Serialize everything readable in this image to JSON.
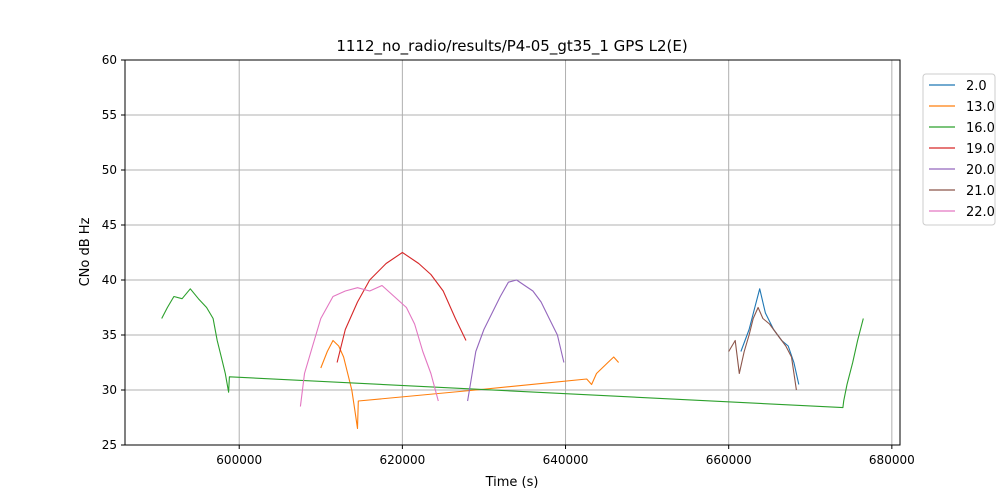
{
  "chart_data": {
    "type": "line",
    "title": "1112_no_radio/results/P4-05_gt35_1 GPS L2(E)",
    "xlabel": "Time (s)",
    "ylabel": "CNo dB Hz",
    "xlim": [
      586000,
      681000
    ],
    "ylim": [
      25,
      60
    ],
    "x_ticks": [
      600000,
      620000,
      640000,
      660000,
      680000
    ],
    "y_ticks": [
      25,
      30,
      35,
      40,
      45,
      50,
      55,
      60
    ],
    "grid": true,
    "legend_position": "right, outside plot",
    "series": [
      {
        "name": "2.0",
        "color": "#1f77b4",
        "points": [
          [
            661500,
            33.5
          ],
          [
            662500,
            35.5
          ],
          [
            663200,
            37.5
          ],
          [
            663800,
            39.2
          ],
          [
            664500,
            37
          ],
          [
            665500,
            35.5
          ],
          [
            666500,
            34.5
          ],
          [
            667300,
            34
          ],
          [
            668000,
            32.5
          ],
          [
            668600,
            30.5
          ]
        ]
      },
      {
        "name": "13.0",
        "color": "#ff7f0e",
        "points": [
          [
            610000,
            32
          ],
          [
            610800,
            33.5
          ],
          [
            611500,
            34.5
          ],
          [
            612200,
            34
          ],
          [
            612800,
            33
          ],
          [
            613300,
            31.5
          ],
          [
            613800,
            30
          ],
          [
            614200,
            28
          ],
          [
            614500,
            26.5
          ],
          [
            614600,
            29
          ],
          [
            629000,
            30
          ],
          [
            642600,
            31
          ],
          [
            643200,
            30.5
          ],
          [
            643800,
            31.5
          ],
          [
            644500,
            32
          ],
          [
            645200,
            32.5
          ],
          [
            645900,
            33
          ],
          [
            646500,
            32.5
          ]
        ]
      },
      {
        "name": "16.0",
        "color": "#2ca02c",
        "points": [
          [
            590500,
            36.5
          ],
          [
            591200,
            37.5
          ],
          [
            592000,
            38.5
          ],
          [
            593000,
            38.3
          ],
          [
            594000,
            39.2
          ],
          [
            595000,
            38.3
          ],
          [
            596000,
            37.5
          ],
          [
            596800,
            36.5
          ],
          [
            597300,
            34.5
          ],
          [
            597800,
            33
          ],
          [
            598300,
            31.5
          ],
          [
            598700,
            29.8
          ],
          [
            598800,
            31.2
          ],
          [
            674000,
            28.4
          ],
          [
            674100,
            29
          ],
          [
            674500,
            30.5
          ],
          [
            675200,
            32.5
          ],
          [
            675800,
            34.5
          ],
          [
            676500,
            36.5
          ]
        ]
      },
      {
        "name": "19.0",
        "color": "#d62728",
        "points": [
          [
            612000,
            32.5
          ],
          [
            613000,
            35.5
          ],
          [
            614500,
            38
          ],
          [
            616000,
            40
          ],
          [
            618000,
            41.5
          ],
          [
            620000,
            42.5
          ],
          [
            622000,
            41.5
          ],
          [
            623500,
            40.5
          ],
          [
            625000,
            39
          ],
          [
            626500,
            36.5
          ],
          [
            627800,
            34.5
          ]
        ]
      },
      {
        "name": "20.0",
        "color": "#9467bd",
        "points": [
          [
            628000,
            29
          ],
          [
            629000,
            33.5
          ],
          [
            630000,
            35.5
          ],
          [
            631000,
            37
          ],
          [
            632000,
            38.5
          ],
          [
            633000,
            39.8
          ],
          [
            634000,
            40
          ],
          [
            635000,
            39.5
          ],
          [
            636000,
            39
          ],
          [
            637000,
            38
          ],
          [
            638000,
            36.5
          ],
          [
            639000,
            35
          ],
          [
            639800,
            32.5
          ]
        ]
      },
      {
        "name": "21.0",
        "color": "#8c564b",
        "points": [
          [
            660000,
            33.5
          ],
          [
            660800,
            34.5
          ],
          [
            661300,
            31.5
          ],
          [
            661900,
            33.5
          ],
          [
            662500,
            35
          ],
          [
            663000,
            36.5
          ],
          [
            663600,
            37.5
          ],
          [
            664200,
            36.5
          ],
          [
            665000,
            36
          ],
          [
            666000,
            35
          ],
          [
            667000,
            34
          ],
          [
            667700,
            33
          ],
          [
            668300,
            30
          ]
        ]
      },
      {
        "name": "22.0",
        "color": "#e377c2",
        "points": [
          [
            607500,
            28.5
          ],
          [
            608000,
            31.5
          ],
          [
            609000,
            34
          ],
          [
            610000,
            36.5
          ],
          [
            611500,
            38.5
          ],
          [
            613000,
            39
          ],
          [
            614500,
            39.3
          ],
          [
            616000,
            39
          ],
          [
            617500,
            39.5
          ],
          [
            619000,
            38.5
          ],
          [
            620500,
            37.5
          ],
          [
            621500,
            36
          ],
          [
            622500,
            33.5
          ],
          [
            623500,
            31.5
          ],
          [
            624400,
            29
          ]
        ]
      }
    ]
  }
}
